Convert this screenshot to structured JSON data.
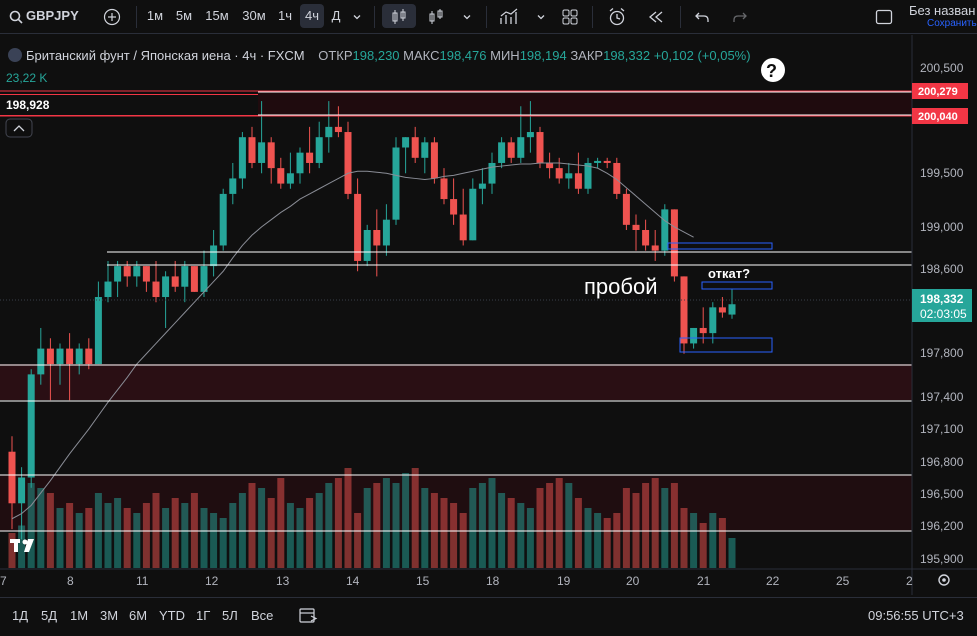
{
  "toolbar": {
    "symbol": "GBPJPY",
    "intervals": [
      "1м",
      "5м",
      "15м",
      "30м",
      "1ч",
      "4ч",
      "Д"
    ],
    "active_interval": "4ч",
    "layout_name": "Без назван",
    "save_label": "Сохранить"
  },
  "legend": {
    "title": "Британский фунт / Японская иена · 4ч · FXCM",
    "open_label": "ОТКР",
    "open": "198,230",
    "high_label": "МАКС",
    "high": "198,476",
    "low_label": "МИН",
    "low": "198,194",
    "close_label": "ЗАКР",
    "close": "198,332",
    "change": "+0,102 (+0,05%)",
    "volume": "23,22 K"
  },
  "left_marker": {
    "value": "198,928"
  },
  "annotations": {
    "breakout": "пробой",
    "pullback": "откат?"
  },
  "price_axis": {
    "ticks": [
      "200,500",
      "199,500",
      "199,000",
      "198,600",
      "197,800",
      "197,400",
      "197,100",
      "196,800",
      "196,500",
      "196,200",
      "195,900"
    ],
    "level_labels": [
      "200,279",
      "200,040"
    ],
    "current_price": "198,332",
    "countdown": "02:03:05"
  },
  "time_axis": {
    "labels": [
      "7",
      "8",
      "11",
      "12",
      "13",
      "14",
      "15",
      "18",
      "19",
      "20",
      "21",
      "22",
      "25",
      "2"
    ]
  },
  "ranges": [
    "1Д",
    "5Д",
    "1М",
    "3М",
    "6М",
    "YTD",
    "1Г",
    "5Л",
    "Все"
  ],
  "clock": "09:56:55 UTC+3",
  "colors": {
    "up": "#26a69a",
    "down": "#ef5350",
    "background": "#0f0f0f",
    "level_red": "#f23645",
    "band": "#2962ff"
  },
  "chart_data": {
    "type": "candlestick",
    "y_range": [
      195.85,
      200.65
    ],
    "candles": [
      [
        196.9,
        197.05,
        196.15,
        196.4
      ],
      [
        196.4,
        196.75,
        196.05,
        196.65
      ],
      [
        196.65,
        197.7,
        196.55,
        197.65
      ],
      [
        197.65,
        198.1,
        197.55,
        197.9
      ],
      [
        197.9,
        198.0,
        197.4,
        197.75
      ],
      [
        197.75,
        197.95,
        197.55,
        197.9
      ],
      [
        197.9,
        198.05,
        197.4,
        197.75
      ],
      [
        197.75,
        197.95,
        197.65,
        197.9
      ],
      [
        197.9,
        198.0,
        197.7,
        197.75
      ],
      [
        197.75,
        198.55,
        197.75,
        198.4
      ],
      [
        198.4,
        198.75,
        198.35,
        198.55
      ],
      [
        198.55,
        198.75,
        198.4,
        198.7
      ],
      [
        198.7,
        198.75,
        198.5,
        198.6
      ],
      [
        198.6,
        198.75,
        198.5,
        198.7
      ],
      [
        198.7,
        198.7,
        198.45,
        198.55
      ],
      [
        198.55,
        198.75,
        198.35,
        198.4
      ],
      [
        198.4,
        198.65,
        198.1,
        198.6
      ],
      [
        198.6,
        198.75,
        198.45,
        198.5
      ],
      [
        198.5,
        198.75,
        198.35,
        198.7
      ],
      [
        198.7,
        198.7,
        198.45,
        198.45
      ],
      [
        198.45,
        198.85,
        198.4,
        198.7
      ],
      [
        198.7,
        199.05,
        198.6,
        198.9
      ],
      [
        198.9,
        199.45,
        198.85,
        199.4
      ],
      [
        199.4,
        199.7,
        199.3,
        199.55
      ],
      [
        199.55,
        200.0,
        199.45,
        199.95
      ],
      [
        199.95,
        200.05,
        199.65,
        199.7
      ],
      [
        199.7,
        200.3,
        199.6,
        199.9
      ],
      [
        199.9,
        199.95,
        199.5,
        199.65
      ],
      [
        199.65,
        199.75,
        199.45,
        199.5
      ],
      [
        199.5,
        199.8,
        199.45,
        199.6
      ],
      [
        199.6,
        199.85,
        199.5,
        199.8
      ],
      [
        199.8,
        200.05,
        199.6,
        199.7
      ],
      [
        199.7,
        200.1,
        199.65,
        199.95
      ],
      [
        199.95,
        200.3,
        199.8,
        200.05
      ],
      [
        200.05,
        200.25,
        199.95,
        200.0
      ],
      [
        200.0,
        200.1,
        199.35,
        199.4
      ],
      [
        199.4,
        199.55,
        198.65,
        198.75
      ],
      [
        198.75,
        199.1,
        198.7,
        199.05
      ],
      [
        199.05,
        199.25,
        198.6,
        198.9
      ],
      [
        198.9,
        199.3,
        198.8,
        199.15
      ],
      [
        199.15,
        199.95,
        199.1,
        199.85
      ],
      [
        199.85,
        199.95,
        199.6,
        199.95
      ],
      [
        199.95,
        200.05,
        199.7,
        199.75
      ],
      [
        199.75,
        199.95,
        199.6,
        199.9
      ],
      [
        199.9,
        199.95,
        199.5,
        199.55
      ],
      [
        199.55,
        199.65,
        199.3,
        199.35
      ],
      [
        199.35,
        199.55,
        199.1,
        199.2
      ],
      [
        199.2,
        199.45,
        198.9,
        198.95
      ],
      [
        198.95,
        199.55,
        198.95,
        199.45
      ],
      [
        199.45,
        199.65,
        199.3,
        199.5
      ],
      [
        199.5,
        199.8,
        199.4,
        199.7
      ],
      [
        199.7,
        199.95,
        199.65,
        199.9
      ],
      [
        199.9,
        199.95,
        199.7,
        199.75
      ],
      [
        199.75,
        200.25,
        199.7,
        199.95
      ],
      [
        199.95,
        200.3,
        199.8,
        200.0
      ],
      [
        200.0,
        200.05,
        199.65,
        199.7
      ],
      [
        199.7,
        199.8,
        199.55,
        199.65
      ],
      [
        199.65,
        199.75,
        199.5,
        199.55
      ],
      [
        199.55,
        199.7,
        199.45,
        199.6
      ],
      [
        199.6,
        199.8,
        199.4,
        199.45
      ],
      [
        199.45,
        199.75,
        199.4,
        199.7
      ],
      [
        199.7,
        199.75,
        199.65,
        199.72
      ],
      [
        199.72,
        199.75,
        199.65,
        199.7
      ],
      [
        199.7,
        199.75,
        199.35,
        199.4
      ],
      [
        199.4,
        199.45,
        199.05,
        199.1
      ],
      [
        199.1,
        199.2,
        198.85,
        199.05
      ],
      [
        199.05,
        199.15,
        198.85,
        198.9
      ],
      [
        198.9,
        199.05,
        198.75,
        198.85
      ],
      [
        198.85,
        199.3,
        198.8,
        199.25
      ],
      [
        199.25,
        199.25,
        198.55,
        198.6
      ],
      [
        198.6,
        198.6,
        197.85,
        197.95
      ],
      [
        197.95,
        198.1,
        197.9,
        198.1
      ],
      [
        198.1,
        198.3,
        197.95,
        198.05
      ],
      [
        198.05,
        198.35,
        197.95,
        198.3
      ],
      [
        198.3,
        198.4,
        198.2,
        198.25
      ],
      [
        198.23,
        198.48,
        198.19,
        198.33
      ]
    ],
    "volumes": [
      70,
      85,
      170,
      160,
      150,
      120,
      130,
      110,
      120,
      150,
      130,
      140,
      120,
      110,
      130,
      150,
      120,
      140,
      130,
      150,
      120,
      110,
      100,
      130,
      150,
      170,
      160,
      140,
      180,
      130,
      120,
      140,
      150,
      170,
      180,
      200,
      110,
      160,
      170,
      180,
      170,
      190,
      200,
      160,
      150,
      140,
      130,
      110,
      160,
      170,
      180,
      150,
      140,
      130,
      120,
      160,
      170,
      180,
      170,
      140,
      120,
      110,
      100,
      110,
      160,
      150,
      170,
      180,
      160,
      170,
      120,
      110,
      90,
      110,
      100,
      60
    ],
    "sma": [
      196.25,
      196.3,
      196.38,
      196.5,
      196.62,
      196.75,
      196.88,
      197.0,
      197.12,
      197.25,
      197.38,
      197.5,
      197.62,
      197.75,
      197.85,
      197.95,
      198.05,
      198.15,
      198.25,
      198.35,
      198.45,
      198.55,
      198.65,
      198.78,
      198.9,
      199.0,
      199.08,
      199.15,
      199.22,
      199.28,
      199.35,
      199.4,
      199.45,
      199.5,
      199.55,
      199.6,
      199.62,
      199.62,
      199.61,
      199.6,
      199.58,
      199.56,
      199.55,
      199.54,
      199.55,
      199.57,
      199.58,
      199.6,
      199.62,
      199.64,
      199.66,
      199.67,
      199.68,
      199.69,
      199.69,
      199.7,
      199.7,
      199.7,
      199.69,
      199.68,
      199.67,
      199.65,
      199.6,
      199.54,
      199.46,
      199.38,
      199.3,
      199.22,
      199.14,
      199.08,
      199.03,
      198.98
    ]
  }
}
